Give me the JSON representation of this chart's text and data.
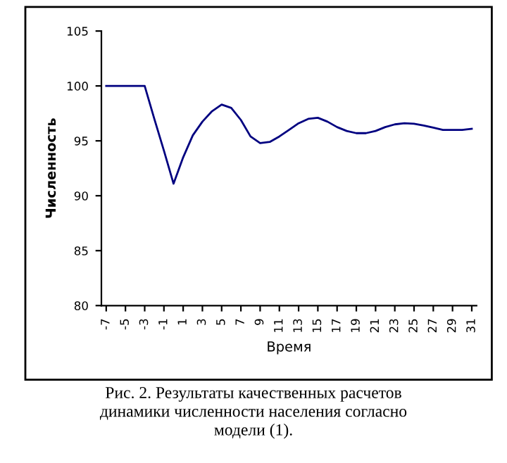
{
  "chart_data": {
    "type": "line",
    "xlabel": "Время",
    "ylabel": "Численность",
    "x": [
      -7,
      -6,
      -5,
      -4,
      -3,
      -2,
      -1,
      0,
      1,
      2,
      3,
      4,
      5,
      6,
      7,
      8,
      9,
      10,
      11,
      12,
      13,
      14,
      15,
      16,
      17,
      18,
      19,
      20,
      21,
      22,
      23,
      24,
      25,
      26,
      27,
      28,
      29,
      30,
      31
    ],
    "series": [
      {
        "color": "#000080",
        "values": [
          100,
          100,
          100,
          100,
          100,
          97.0,
          94.1,
          91.1,
          93.5,
          95.5,
          96.75,
          97.7,
          98.3,
          98.0,
          96.9,
          95.4,
          94.8,
          94.9,
          95.4,
          96.0,
          96.6,
          97.0,
          97.1,
          96.75,
          96.25,
          95.9,
          95.7,
          95.7,
          95.9,
          96.25,
          96.5,
          96.6,
          96.55,
          96.4,
          96.2,
          96.0,
          96.0,
          96.0,
          96.1
        ]
      }
    ],
    "xlim": [
      -7.5,
      31.5
    ],
    "xticks": [
      -7,
      -5,
      -3,
      -1,
      1,
      3,
      5,
      7,
      9,
      11,
      13,
      15,
      17,
      19,
      21,
      23,
      25,
      27,
      29,
      31
    ],
    "ylim": [
      80,
      105
    ],
    "yticks": [
      80,
      85,
      90,
      95,
      100,
      105
    ],
    "grid": false,
    "legend": false,
    "marker": "none",
    "line_style": "solid",
    "annotations": [
      "Рис. 2. Результаты качественных расчетов\nдинамики численности населения согласно\nмодели (1)."
    ]
  }
}
